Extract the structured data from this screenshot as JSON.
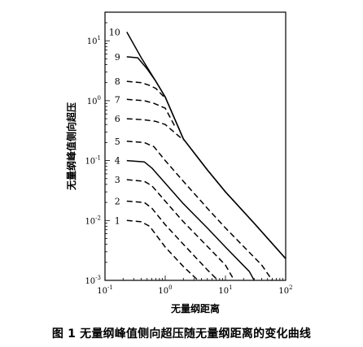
{
  "caption": "图 1   无量纲峰值侧向超压随无量纲距离的变化曲线",
  "chart_data": {
    "type": "line",
    "xscale": "log",
    "yscale": "log",
    "xlim": [
      0.1,
      100
    ],
    "ylim": [
      0.001,
      30
    ],
    "xlabel": "无量纲距离",
    "ylabel": "无量纲峰值侧向超压",
    "x_ticks": [
      {
        "base": "10",
        "exp": "-1"
      },
      {
        "base": "10",
        "exp": "0"
      },
      {
        "base": "10",
        "exp": "1"
      },
      {
        "base": "10",
        "exp": "2"
      }
    ],
    "y_ticks": [
      {
        "base": "10",
        "exp": "-3"
      },
      {
        "base": "10",
        "exp": "-2"
      },
      {
        "base": "10",
        "exp": "-1"
      },
      {
        "base": "10",
        "exp": "0"
      },
      {
        "base": "10",
        "exp": "1"
      }
    ],
    "series": [
      {
        "name": "10",
        "style": "solid",
        "points": [
          [
            0.23,
            14
          ],
          [
            0.4,
            5.2
          ],
          [
            0.7,
            2.1
          ],
          [
            1,
            1.15
          ],
          [
            2,
            0.23
          ],
          [
            5,
            0.07
          ],
          [
            10,
            0.03
          ],
          [
            30,
            0.009
          ],
          [
            100,
            0.0023
          ]
        ]
      },
      {
        "name": "9",
        "style": "solid",
        "points": [
          [
            0.23,
            5.4
          ],
          [
            0.35,
            5.2
          ],
          [
            0.5,
            3.4
          ],
          [
            0.7,
            2.1
          ],
          [
            1,
            1.15
          ],
          [
            2,
            0.23
          ],
          [
            5,
            0.07
          ],
          [
            10,
            0.03
          ],
          [
            30,
            0.009
          ],
          [
            100,
            0.0023
          ]
        ]
      },
      {
        "name": "8",
        "style": "dashed",
        "points": [
          [
            0.23,
            2.1
          ],
          [
            0.4,
            2.0
          ],
          [
            0.55,
            1.8
          ],
          [
            0.7,
            1.6
          ],
          [
            1,
            1.1
          ]
        ]
      },
      {
        "name": "7",
        "style": "dashed",
        "points": [
          [
            0.23,
            1.05
          ],
          [
            0.45,
            1.0
          ],
          [
            0.65,
            0.9
          ],
          [
            1,
            0.75
          ],
          [
            1.5,
            0.35
          ]
        ]
      },
      {
        "name": "6",
        "style": "dashed",
        "points": [
          [
            0.23,
            0.5
          ],
          [
            0.45,
            0.48
          ],
          [
            0.7,
            0.45
          ],
          [
            1,
            0.4
          ],
          [
            2,
            0.22
          ]
        ]
      },
      {
        "name": "5",
        "style": "dashed",
        "points": [
          [
            0.23,
            0.21
          ],
          [
            0.45,
            0.2
          ],
          [
            0.65,
            0.17
          ],
          [
            1,
            0.1
          ],
          [
            2,
            0.045
          ],
          [
            5,
            0.016
          ],
          [
            10,
            0.0075
          ],
          [
            40,
            0.0018
          ],
          [
            60,
            0.001
          ]
        ]
      },
      {
        "name": "4",
        "style": "solid",
        "points": [
          [
            0.23,
            0.1
          ],
          [
            0.45,
            0.095
          ],
          [
            0.6,
            0.075
          ],
          [
            1,
            0.042
          ],
          [
            2,
            0.019
          ],
          [
            5,
            0.0075
          ],
          [
            10,
            0.0036
          ],
          [
            25,
            0.0014
          ],
          [
            30,
            0.001
          ]
        ]
      },
      {
        "name": "3",
        "style": "dashed",
        "points": [
          [
            0.23,
            0.048
          ],
          [
            0.45,
            0.045
          ],
          [
            0.6,
            0.038
          ],
          [
            1,
            0.021
          ],
          [
            2,
            0.0095
          ],
          [
            5,
            0.0037
          ],
          [
            10,
            0.0018
          ],
          [
            14,
            0.001
          ]
        ]
      },
      {
        "name": "2",
        "style": "dashed",
        "points": [
          [
            0.23,
            0.021
          ],
          [
            0.45,
            0.02
          ],
          [
            0.6,
            0.016
          ],
          [
            1,
            0.0085
          ],
          [
            2,
            0.004
          ],
          [
            5,
            0.0015
          ],
          [
            7.5,
            0.001
          ]
        ]
      },
      {
        "name": "1",
        "style": "dashed",
        "points": [
          [
            0.23,
            0.01
          ],
          [
            0.4,
            0.0095
          ],
          [
            0.55,
            0.008
          ],
          [
            1,
            0.0036
          ],
          [
            2,
            0.0017
          ],
          [
            3.5,
            0.001
          ]
        ]
      }
    ]
  }
}
